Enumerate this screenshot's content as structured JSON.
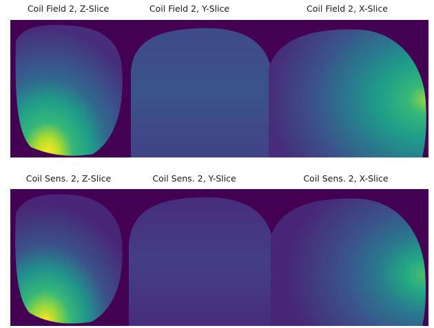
{
  "figure": {
    "rows": [
      {
        "titles": [
          "Coil Field 2, Z-Slice",
          "Coil Field 2, Y-Slice",
          "Coil Field 2, X-Slice"
        ]
      },
      {
        "titles": [
          "Coil Sens. 2, Z-Slice",
          "Coil Sens. 2, Y-Slice",
          "Coil Sens. 2, X-Slice"
        ]
      }
    ],
    "colormap": {
      "name": "viridis",
      "background": "#440154",
      "low": "#472d7b",
      "mid": "#31688e",
      "high": "#35b779",
      "peak": "#fde725"
    }
  }
}
